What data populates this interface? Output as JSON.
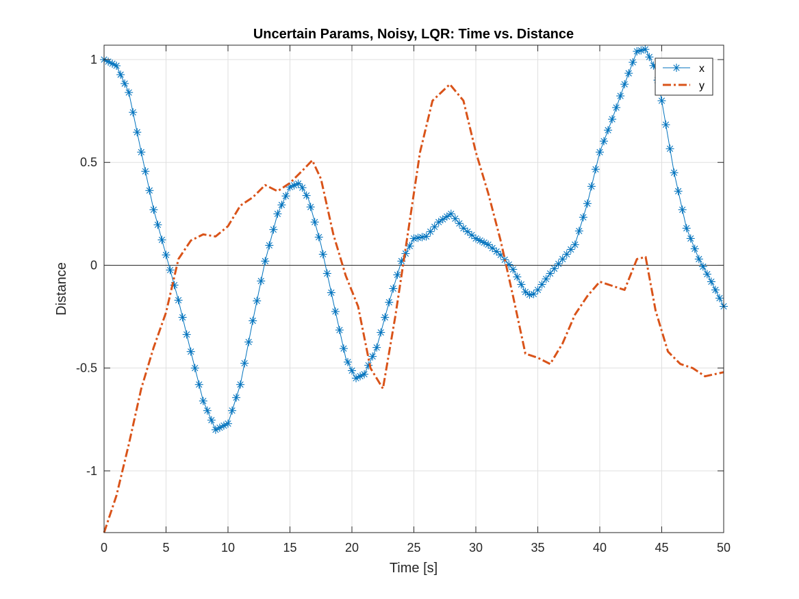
{
  "chart_data": {
    "type": "line",
    "title": "Uncertain Params, Noisy, LQR: Time vs. Distance",
    "xlabel": "Time [s]",
    "ylabel": "Distance",
    "xlim": [
      0,
      50
    ],
    "ylim": [
      -1.3,
      1.07
    ],
    "xticks": [
      0,
      5,
      10,
      15,
      20,
      25,
      30,
      35,
      40,
      45,
      50
    ],
    "xtick_labels": [
      "0",
      "5",
      "10",
      "15",
      "20",
      "25",
      "30",
      "35",
      "40",
      "45",
      "50"
    ],
    "yticks": [
      1,
      0.5,
      0,
      -0.5,
      -1
    ],
    "ytick_labels": [
      "1",
      "0.5",
      "0",
      "-0.5",
      "-1"
    ],
    "grid": true,
    "zero_line": true,
    "legend_position": "top-right",
    "series": [
      {
        "name": "x",
        "color": "#0072BD",
        "line_style": "solid",
        "marker": "asterisk",
        "points": [
          [
            0,
            1.0
          ],
          [
            1,
            0.97
          ],
          [
            2,
            0.84
          ],
          [
            3,
            0.55
          ],
          [
            4,
            0.27
          ],
          [
            5,
            0.05
          ],
          [
            6,
            -0.17
          ],
          [
            7,
            -0.42
          ],
          [
            8,
            -0.66
          ],
          [
            9,
            -0.8
          ],
          [
            10,
            -0.77
          ],
          [
            11,
            -0.58
          ],
          [
            12,
            -0.27
          ],
          [
            13,
            0.02
          ],
          [
            14,
            0.25
          ],
          [
            15,
            0.38
          ],
          [
            15.8,
            0.4
          ],
          [
            16.5,
            0.32
          ],
          [
            17.5,
            0.1
          ],
          [
            18.5,
            -0.18
          ],
          [
            19.5,
            -0.45
          ],
          [
            20.3,
            -0.55
          ],
          [
            21,
            -0.53
          ],
          [
            22,
            -0.4
          ],
          [
            23,
            -0.18
          ],
          [
            24,
            0.02
          ],
          [
            25,
            0.13
          ],
          [
            26,
            0.14
          ],
          [
            27,
            0.21
          ],
          [
            28,
            0.25
          ],
          [
            29,
            0.18
          ],
          [
            30,
            0.13
          ],
          [
            31,
            0.1
          ],
          [
            32,
            0.05
          ],
          [
            33,
            -0.02
          ],
          [
            34,
            -0.13
          ],
          [
            34.5,
            -0.15
          ],
          [
            35,
            -0.12
          ],
          [
            36,
            -0.04
          ],
          [
            37,
            0.03
          ],
          [
            38,
            0.1
          ],
          [
            39,
            0.3
          ],
          [
            40,
            0.55
          ],
          [
            41,
            0.71
          ],
          [
            42,
            0.88
          ],
          [
            43,
            1.04
          ],
          [
            43.7,
            1.05
          ],
          [
            44.5,
            0.95
          ],
          [
            45,
            0.8
          ],
          [
            46,
            0.45
          ],
          [
            47,
            0.18
          ],
          [
            48,
            0.03
          ],
          [
            49,
            -0.08
          ],
          [
            50,
            -0.2
          ]
        ]
      },
      {
        "name": "y",
        "color": "#D95319",
        "line_style": "dashdot",
        "marker": "none",
        "points": [
          [
            0,
            -1.3
          ],
          [
            1,
            -1.12
          ],
          [
            2,
            -0.87
          ],
          [
            3,
            -0.6
          ],
          [
            4,
            -0.4
          ],
          [
            5,
            -0.23
          ],
          [
            6,
            0.03
          ],
          [
            7,
            0.12
          ],
          [
            8,
            0.15
          ],
          [
            9,
            0.14
          ],
          [
            10,
            0.19
          ],
          [
            11,
            0.29
          ],
          [
            12,
            0.33
          ],
          [
            13,
            0.39
          ],
          [
            14,
            0.36
          ],
          [
            15,
            0.4
          ],
          [
            16,
            0.46
          ],
          [
            16.8,
            0.51
          ],
          [
            17.5,
            0.42
          ],
          [
            18.5,
            0.15
          ],
          [
            19.5,
            -0.05
          ],
          [
            20.5,
            -0.2
          ],
          [
            21.5,
            -0.5
          ],
          [
            22.5,
            -0.6
          ],
          [
            23.5,
            -0.25
          ],
          [
            24.5,
            0.15
          ],
          [
            25.5,
            0.55
          ],
          [
            26.5,
            0.8
          ],
          [
            27.9,
            0.88
          ],
          [
            29,
            0.8
          ],
          [
            30,
            0.55
          ],
          [
            31,
            0.35
          ],
          [
            32,
            0.12
          ],
          [
            33,
            -0.15
          ],
          [
            34,
            -0.43
          ],
          [
            35,
            -0.45
          ],
          [
            36,
            -0.48
          ],
          [
            37,
            -0.38
          ],
          [
            38,
            -0.24
          ],
          [
            39,
            -0.15
          ],
          [
            40,
            -0.08
          ],
          [
            41,
            -0.1
          ],
          [
            42,
            -0.12
          ],
          [
            43,
            0.03
          ],
          [
            43.7,
            0.04
          ],
          [
            44.5,
            -0.22
          ],
          [
            45.5,
            -0.42
          ],
          [
            46.5,
            -0.48
          ],
          [
            47.5,
            -0.5
          ],
          [
            48.5,
            -0.54
          ],
          [
            50,
            -0.52
          ]
        ]
      }
    ]
  }
}
